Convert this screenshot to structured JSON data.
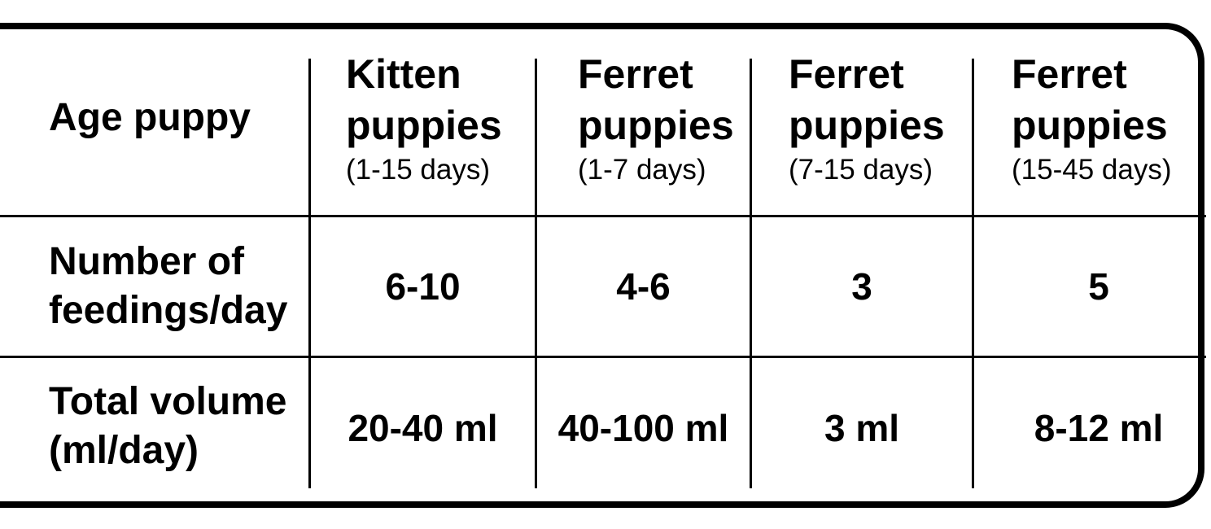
{
  "table": {
    "corner_header": "Age puppy",
    "columns": [
      {
        "title_line1": "Kitten",
        "title_line2": "puppies",
        "subtitle": "(1-15 days)"
      },
      {
        "title_line1": "Ferret",
        "title_line2": "puppies",
        "subtitle": "(1-7 days)"
      },
      {
        "title_line1": "Ferret",
        "title_line2": "puppies",
        "subtitle": "(7-15 days)"
      },
      {
        "title_line1": "Ferret",
        "title_line2": "puppies",
        "subtitle": "(15-45 days)"
      }
    ],
    "rows": [
      {
        "label_line1": "Number of",
        "label_line2": "feedings/day",
        "values": [
          "6-10",
          "4-6",
          "3",
          "5"
        ]
      },
      {
        "label_line1": "Total volume",
        "label_line2": "(ml/day)",
        "values": [
          "20-40 ml",
          "40-100 ml",
          "3 ml",
          "8-12 ml"
        ]
      }
    ]
  }
}
